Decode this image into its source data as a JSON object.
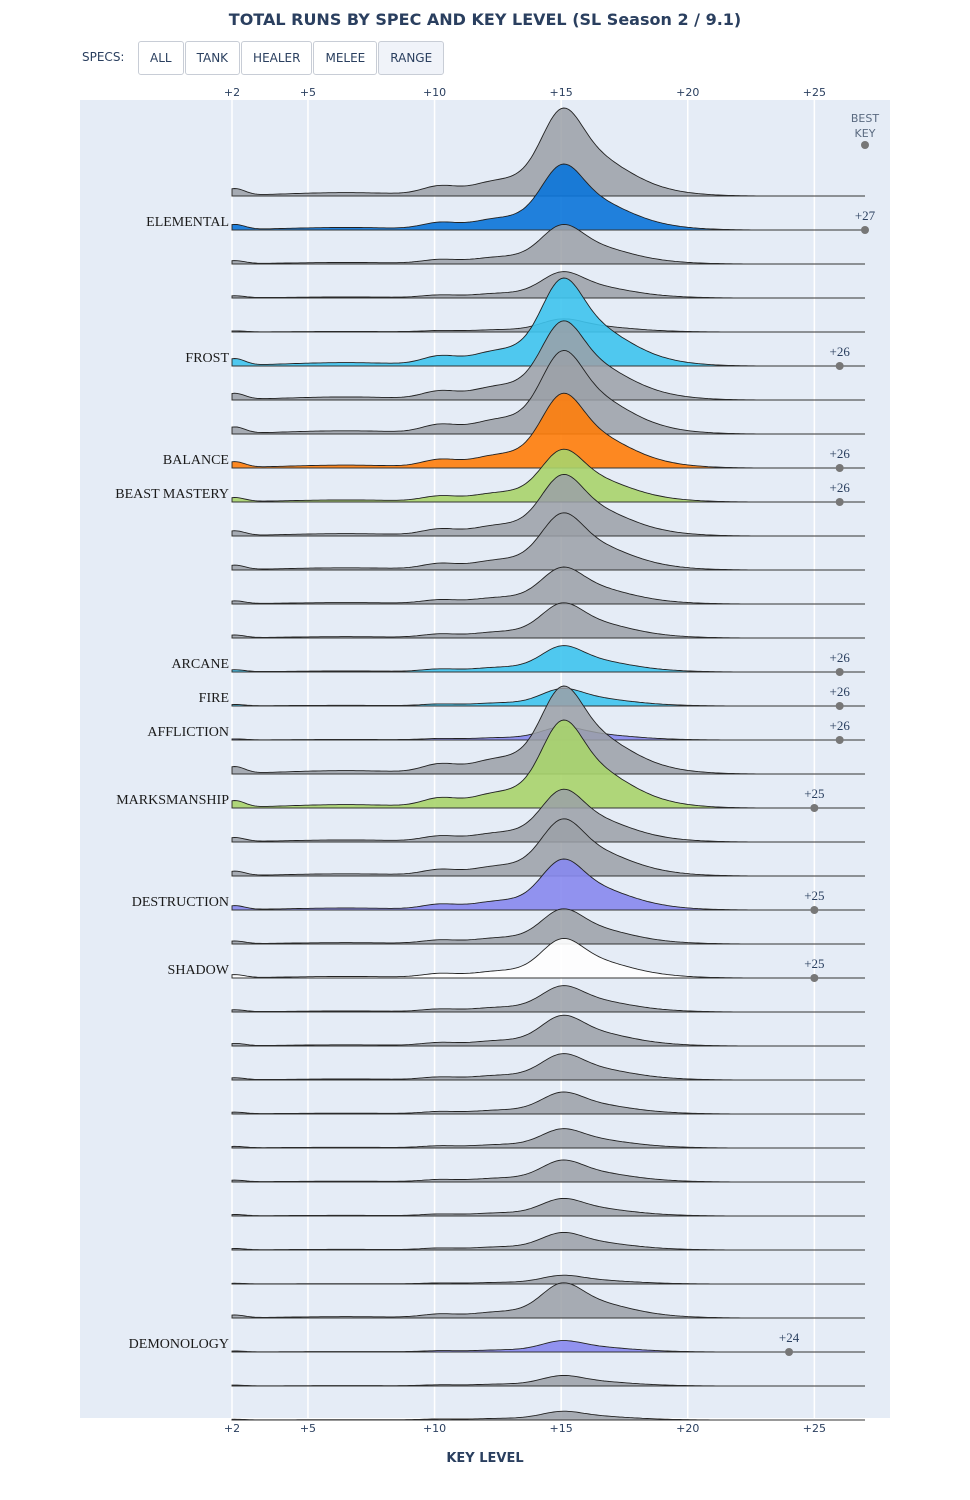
{
  "title": "TOTAL RUNS BY SPEC AND KEY LEVEL (SL Season 2 / 9.1)",
  "filter": {
    "label": "SPECS:",
    "buttons": [
      "ALL",
      "TANK",
      "HEALER",
      "MELEE",
      "RANGE"
    ],
    "active": "RANGE"
  },
  "colors": {
    "plot_bg": "#e5ecf6",
    "gray_fill": "#9ba0a7",
    "elemental": "#0a74d9",
    "mage": "#3ec4ee",
    "balance": "#ff7d0a",
    "hunter": "#a8d46c",
    "warlock": "#8788ee",
    "priest": "#ffffff",
    "marker": "#777777"
  },
  "chart_data": {
    "type": "ridgeline",
    "xlabel": "KEY LEVEL",
    "x_ticks": [
      "+2",
      "+5",
      "+10",
      "+15",
      "+20",
      "+25"
    ],
    "x_tick_values": [
      2,
      5,
      10,
      15,
      20,
      25
    ],
    "xlim": [
      2,
      27
    ],
    "best_key_header": [
      "BEST",
      "KEY"
    ],
    "rows": [
      {
        "name": "",
        "highlight": false,
        "fill": "#9ba0a7",
        "scale": 1.0,
        "best": "",
        "best_value": null
      },
      {
        "name": "ELEMENTAL",
        "highlight": true,
        "fill": "#0a74d9",
        "scale": 0.75,
        "best": "+27",
        "best_value": 27
      },
      {
        "name": "",
        "highlight": false,
        "fill": "#9ba0a7",
        "scale": 0.45,
        "best": "",
        "best_value": null
      },
      {
        "name": "",
        "highlight": false,
        "fill": "#9ba0a7",
        "scale": 0.3,
        "best": "",
        "best_value": null
      },
      {
        "name": "",
        "highlight": false,
        "fill": "#9ba0a7",
        "scale": 0.15,
        "best": "",
        "best_value": null
      },
      {
        "name": "FROST",
        "highlight": true,
        "fill": "#3ec4ee",
        "scale": 1.0,
        "best": "+26",
        "best_value": 26
      },
      {
        "name": "",
        "highlight": false,
        "fill": "#9ba0a7",
        "scale": 0.9,
        "best": "",
        "best_value": null
      },
      {
        "name": "",
        "highlight": false,
        "fill": "#9ba0a7",
        "scale": 0.95,
        "best": "",
        "best_value": null
      },
      {
        "name": "BALANCE",
        "highlight": true,
        "fill": "#ff7d0a",
        "scale": 0.85,
        "best": "+26",
        "best_value": 26
      },
      {
        "name": "BEAST MASTERY",
        "highlight": true,
        "fill": "#a8d46c",
        "scale": 0.6,
        "best": "+26",
        "best_value": 26
      },
      {
        "name": "",
        "highlight": false,
        "fill": "#9ba0a7",
        "scale": 0.7,
        "best": "",
        "best_value": null
      },
      {
        "name": "",
        "highlight": false,
        "fill": "#9ba0a7",
        "scale": 0.65,
        "best": "",
        "best_value": null
      },
      {
        "name": "",
        "highlight": false,
        "fill": "#9ba0a7",
        "scale": 0.42,
        "best": "",
        "best_value": null
      },
      {
        "name": "",
        "highlight": false,
        "fill": "#9ba0a7",
        "scale": 0.4,
        "best": "",
        "best_value": null
      },
      {
        "name": "ARCANE",
        "highlight": true,
        "fill": "#3ec4ee",
        "scale": 0.3,
        "best": "+26",
        "best_value": 26
      },
      {
        "name": "FIRE",
        "highlight": true,
        "fill": "#3ec4ee",
        "scale": 0.2,
        "best": "+26",
        "best_value": 26
      },
      {
        "name": "AFFLICTION",
        "highlight": true,
        "fill": "#8788ee",
        "scale": 0.15,
        "best": "+26",
        "best_value": 26
      },
      {
        "name": "",
        "highlight": false,
        "fill": "#9ba0a7",
        "scale": 1.0,
        "best": "",
        "best_value": null
      },
      {
        "name": "MARKSMANSHIP",
        "highlight": true,
        "fill": "#a8d46c",
        "scale": 1.0,
        "best": "+25",
        "best_value": 25
      },
      {
        "name": "",
        "highlight": false,
        "fill": "#9ba0a7",
        "scale": 0.6,
        "best": "",
        "best_value": null
      },
      {
        "name": "",
        "highlight": false,
        "fill": "#9ba0a7",
        "scale": 0.65,
        "best": "",
        "best_value": null
      },
      {
        "name": "DESTRUCTION",
        "highlight": true,
        "fill": "#8788ee",
        "scale": 0.58,
        "best": "+25",
        "best_value": 25
      },
      {
        "name": "",
        "highlight": false,
        "fill": "#9ba0a7",
        "scale": 0.4,
        "best": "",
        "best_value": null
      },
      {
        "name": "SHADOW",
        "highlight": true,
        "fill": "#ffffff",
        "scale": 0.45,
        "best": "+25",
        "best_value": 25
      },
      {
        "name": "",
        "highlight": false,
        "fill": "#9ba0a7",
        "scale": 0.3,
        "best": "",
        "best_value": null
      },
      {
        "name": "",
        "highlight": false,
        "fill": "#9ba0a7",
        "scale": 0.35,
        "best": "",
        "best_value": null
      },
      {
        "name": "",
        "highlight": false,
        "fill": "#9ba0a7",
        "scale": 0.3,
        "best": "",
        "best_value": null
      },
      {
        "name": "",
        "highlight": false,
        "fill": "#9ba0a7",
        "scale": 0.25,
        "best": "",
        "best_value": null
      },
      {
        "name": "",
        "highlight": false,
        "fill": "#9ba0a7",
        "scale": 0.22,
        "best": "",
        "best_value": null
      },
      {
        "name": "",
        "highlight": false,
        "fill": "#9ba0a7",
        "scale": 0.25,
        "best": "",
        "best_value": null
      },
      {
        "name": "",
        "highlight": false,
        "fill": "#9ba0a7",
        "scale": 0.2,
        "best": "",
        "best_value": null
      },
      {
        "name": "",
        "highlight": false,
        "fill": "#9ba0a7",
        "scale": 0.2,
        "best": "",
        "best_value": null
      },
      {
        "name": "",
        "highlight": false,
        "fill": "#9ba0a7",
        "scale": 0.1,
        "best": "",
        "best_value": null
      },
      {
        "name": "",
        "highlight": false,
        "fill": "#9ba0a7",
        "scale": 0.4,
        "best": "",
        "best_value": null
      },
      {
        "name": "DEMONOLOGY",
        "highlight": true,
        "fill": "#8788ee",
        "scale": 0.13,
        "best": "+24",
        "best_value": 24
      },
      {
        "name": "",
        "highlight": false,
        "fill": "#9ba0a7",
        "scale": 0.12,
        "best": "",
        "best_value": null
      },
      {
        "name": "",
        "highlight": false,
        "fill": "#9ba0a7",
        "scale": 0.1,
        "best": "",
        "best_value": null
      }
    ]
  }
}
